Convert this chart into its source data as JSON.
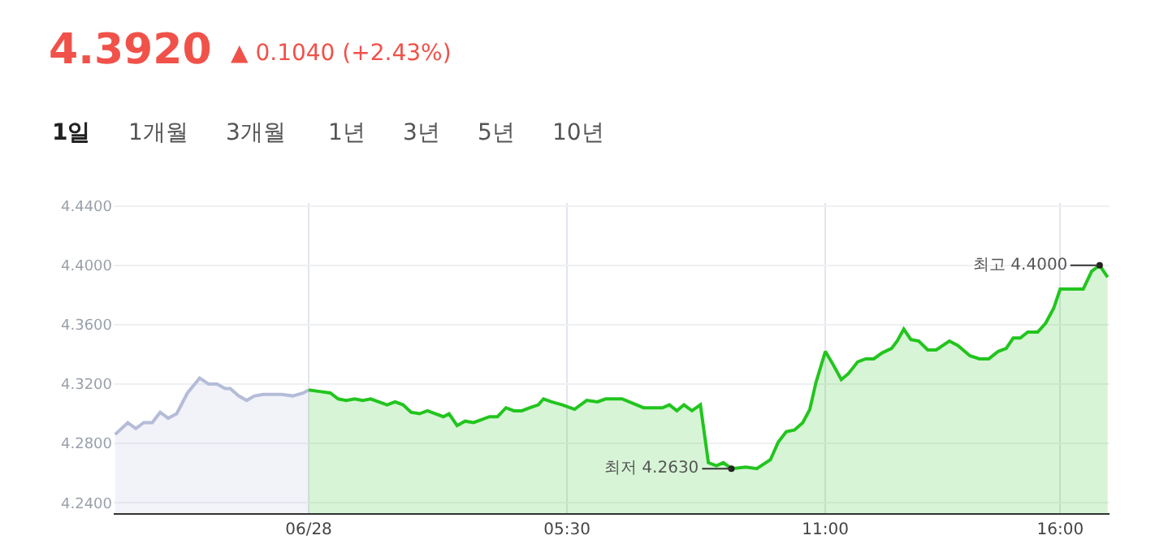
{
  "chart_data": {
    "type": "area",
    "title": "4.3920",
    "subtitle": "▲ 0.1040 (+2.43%)",
    "annotations": [
      "1일",
      "1개월",
      "3개월",
      "1년",
      "3년",
      "5년",
      "10년",
      {
        "text": "최저 4.2630",
        "x": 9.0,
        "y": 4.263
      },
      {
        "text": "최고 4.4000",
        "x": 16.84,
        "y": 4.4
      }
    ],
    "series": [
      {
        "color": "#b4bcd9",
        "x": [
          -4.12,
          -3.85,
          -3.68,
          -3.51,
          -3.33,
          -3.16,
          -2.99,
          -2.81,
          -2.58,
          -2.32,
          -2.13,
          -1.95,
          -1.78,
          -1.67,
          -1.49,
          -1.32,
          -1.15,
          -0.97,
          -0.57,
          -0.34,
          -0.11,
          0
        ],
        "values": [
          4.286,
          4.294,
          4.29,
          4.294,
          4.294,
          4.301,
          4.297,
          4.3,
          4.314,
          4.324,
          4.32,
          4.32,
          4.317,
          4.317,
          4.312,
          4.309,
          4.312,
          4.313,
          4.313,
          4.312,
          4.314,
          4.316
        ]
      },
      {
        "color": "#22c51e",
        "x": [
          0,
          0.23,
          0.46,
          0.63,
          0.8,
          0.98,
          1.15,
          1.32,
          1.49,
          1.67,
          1.84,
          2.01,
          2.18,
          2.36,
          2.53,
          2.7,
          2.87,
          2.99,
          3.16,
          3.33,
          3.51,
          3.68,
          3.85,
          4.02,
          4.2,
          4.37,
          4.54,
          4.71,
          4.89,
          5.0,
          5.17,
          5.4,
          5.66,
          5.92,
          6.15,
          6.32,
          6.67,
          7.13,
          7.53,
          7.68,
          7.84,
          7.99,
          8.16,
          8.34,
          8.51,
          8.68,
          8.83,
          9.0,
          9.31,
          9.54,
          9.83,
          10.0,
          10.17,
          10.34,
          10.52,
          10.67,
          10.8,
          11.0,
          11.15,
          11.34,
          11.49,
          11.69,
          11.86,
          12.03,
          12.21,
          12.41,
          12.53,
          12.67,
          12.82,
          12.99,
          13.18,
          13.36,
          13.64,
          13.82,
          14.08,
          14.28,
          14.48,
          14.68,
          14.85,
          15.0,
          15.15,
          15.31,
          15.52,
          15.69,
          15.86,
          16.0,
          16.49,
          16.67,
          16.84,
          17.01
        ],
        "values": [
          4.316,
          4.315,
          4.314,
          4.31,
          4.309,
          4.31,
          4.309,
          4.31,
          4.308,
          4.306,
          4.308,
          4.306,
          4.301,
          4.3,
          4.302,
          4.3,
          4.298,
          4.3,
          4.292,
          4.295,
          4.294,
          4.296,
          4.298,
          4.298,
          4.304,
          4.302,
          4.302,
          4.304,
          4.306,
          4.31,
          4.308,
          4.306,
          4.303,
          4.309,
          4.308,
          4.31,
          4.31,
          4.304,
          4.304,
          4.306,
          4.302,
          4.306,
          4.302,
          4.306,
          4.267,
          4.265,
          4.267,
          4.263,
          4.264,
          4.263,
          4.269,
          4.281,
          4.288,
          4.289,
          4.294,
          4.303,
          4.321,
          4.342,
          4.334,
          4.323,
          4.327,
          4.335,
          4.337,
          4.337,
          4.341,
          4.344,
          4.349,
          4.357,
          4.35,
          4.349,
          4.343,
          4.343,
          4.349,
          4.346,
          4.339,
          4.337,
          4.337,
          4.342,
          4.344,
          4.351,
          4.351,
          4.355,
          4.355,
          4.361,
          4.371,
          4.384,
          4.384,
          4.396,
          4.4,
          4.392
        ]
      }
    ],
    "xlim": [
      -4.15,
      17.05
    ],
    "xticks": [
      {
        "value": 0,
        "label": "06/28"
      },
      {
        "value": 5.5,
        "label": "05:30"
      },
      {
        "value": 11,
        "label": "11:00"
      },
      {
        "value": 16,
        "label": "16:00"
      }
    ],
    "ylim": [
      4.233,
      4.442
    ],
    "yticks": [
      {
        "value": 4.24,
        "label": "4.2400"
      },
      {
        "value": 4.28,
        "label": "4.2800"
      },
      {
        "value": 4.32,
        "label": "4.3200"
      },
      {
        "value": 4.36,
        "label": "4.3600"
      },
      {
        "value": 4.4,
        "label": "4.4000"
      },
      {
        "value": 4.44,
        "label": "4.4400"
      }
    ],
    "grid": true,
    "marker": "none",
    "line_style": "solid"
  }
}
